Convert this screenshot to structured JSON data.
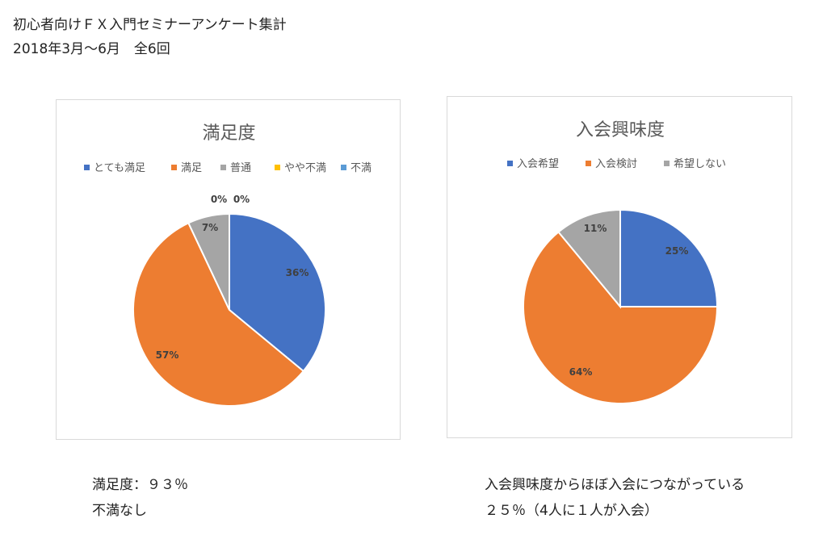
{
  "header": {
    "title": "初心者向けＦＸ入門セミナーアンケート集計",
    "subtitle": "2018年3月〜6月　全6回"
  },
  "chart_data": [
    {
      "type": "pie",
      "title": "満足度",
      "legend_position": "top",
      "slices": [
        {
          "label": "とても満足",
          "value": 36,
          "display": "36%",
          "color": "#4472C4"
        },
        {
          "label": "満足",
          "value": 57,
          "display": "57%",
          "color": "#ED7D31"
        },
        {
          "label": "普通",
          "value": 7,
          "display": "7%",
          "color": "#A5A5A5"
        },
        {
          "label": "やや不満",
          "value": 0,
          "display": "0%",
          "color": "#FFC000"
        },
        {
          "label": "不満",
          "value": 0,
          "display": "0%",
          "color": "#5B9BD5"
        }
      ]
    },
    {
      "type": "pie",
      "title": "入会興味度",
      "legend_position": "top",
      "slices": [
        {
          "label": "入会希望",
          "value": 25,
          "display": "25%",
          "color": "#4472C4"
        },
        {
          "label": "入会検討",
          "value": 64,
          "display": "64%",
          "color": "#ED7D31"
        },
        {
          "label": "希望しない",
          "value": 11,
          "display": "11%",
          "color": "#A5A5A5"
        }
      ]
    }
  ],
  "notes": {
    "left_line1": "満足度：９３％",
    "left_line2": "不満なし",
    "right_line1": "入会興味度からほぼ入会につながっている",
    "right_line2": "２５％（4人に１人が入会）"
  }
}
